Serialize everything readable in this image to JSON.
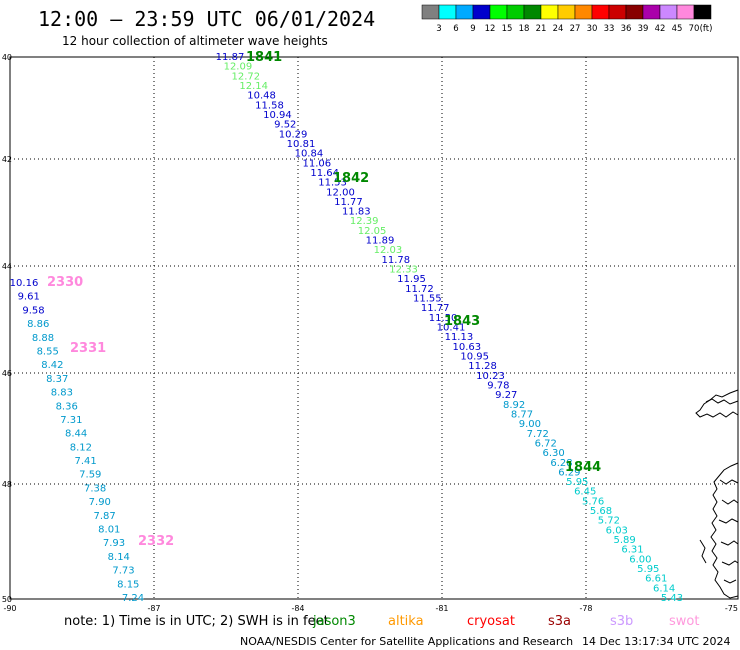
{
  "header": {
    "title": "12:00 — 23:59 UTC 06/01/2024",
    "subtitle": "12 hour collection of altimeter wave heights"
  },
  "colorbar": {
    "unit": "(ft)",
    "bins": [
      {
        "color": "#808080",
        "label": "3"
      },
      {
        "color": "#00ffff",
        "label": "6"
      },
      {
        "color": "#00aaff",
        "label": "9"
      },
      {
        "color": "#0000cc",
        "label": "12"
      },
      {
        "color": "#00ff00",
        "label": "15"
      },
      {
        "color": "#00cc00",
        "label": "18"
      },
      {
        "color": "#008800",
        "label": "21"
      },
      {
        "color": "#ffff00",
        "label": "24"
      },
      {
        "color": "#ffcc00",
        "label": "27"
      },
      {
        "color": "#ff8800",
        "label": "30"
      },
      {
        "color": "#ff0000",
        "label": "33"
      },
      {
        "color": "#cc0000",
        "label": "36"
      },
      {
        "color": "#880000",
        "label": "39"
      },
      {
        "color": "#aa00aa",
        "label": "42"
      },
      {
        "color": "#cc88ff",
        "label": "45"
      },
      {
        "color": "#ff88dd",
        "label": "70"
      },
      {
        "color": "#000000",
        "label": ""
      }
    ]
  },
  "axes": {
    "x_ticks": [
      "-90",
      "-87",
      "-84",
      "-81",
      "-78",
      "-75"
    ],
    "y_ticks": [
      "40",
      "42",
      "44",
      "46",
      "48",
      "50"
    ]
  },
  "tracks": [
    {
      "label": "1841",
      "color": "#008800"
    },
    {
      "label": "1842",
      "color": "#008800"
    },
    {
      "label": "1843",
      "color": "#008800"
    },
    {
      "label": "1844",
      "color": "#008800"
    },
    {
      "label": "2330",
      "color": "#ff88dd"
    },
    {
      "label": "2331",
      "color": "#ff88dd"
    },
    {
      "label": "2332",
      "color": "#ff88dd"
    }
  ],
  "observations": {
    "east_track": [
      {
        "v": "11.87",
        "c": "#0000cc"
      },
      {
        "v": "12.09",
        "c": "#66ee66"
      },
      {
        "v": "12.72",
        "c": "#66ee66"
      },
      {
        "v": "12.14",
        "c": "#66ee66"
      },
      {
        "v": "10.48",
        "c": "#0000cc"
      },
      {
        "v": "11.58",
        "c": "#0000cc"
      },
      {
        "v": "10.94",
        "c": "#0000cc"
      },
      {
        "v": "9.52",
        "c": "#0000cc"
      },
      {
        "v": "10.29",
        "c": "#0000cc"
      },
      {
        "v": "10.81",
        "c": "#0000cc"
      },
      {
        "v": "10.84",
        "c": "#0000cc"
      },
      {
        "v": "11.06",
        "c": "#0000cc"
      },
      {
        "v": "11.64",
        "c": "#0000cc"
      },
      {
        "v": "11.53",
        "c": "#0000cc"
      },
      {
        "v": "12.00",
        "c": "#0000cc"
      },
      {
        "v": "11.77",
        "c": "#0000cc"
      },
      {
        "v": "11.83",
        "c": "#0000cc"
      },
      {
        "v": "12.39",
        "c": "#66ee66"
      },
      {
        "v": "12.05",
        "c": "#66ee66"
      },
      {
        "v": "11.89",
        "c": "#0000cc"
      },
      {
        "v": "12.03",
        "c": "#66ee66"
      },
      {
        "v": "11.78",
        "c": "#0000cc"
      },
      {
        "v": "12.33",
        "c": "#66ee66"
      },
      {
        "v": "11.95",
        "c": "#0000cc"
      },
      {
        "v": "11.72",
        "c": "#0000cc"
      },
      {
        "v": "11.55",
        "c": "#0000cc"
      },
      {
        "v": "11.77",
        "c": "#0000cc"
      },
      {
        "v": "11.50",
        "c": "#0000cc"
      },
      {
        "v": "10.41",
        "c": "#0000cc"
      },
      {
        "v": "11.13",
        "c": "#0000cc"
      },
      {
        "v": "10.63",
        "c": "#0000cc"
      },
      {
        "v": "10.95",
        "c": "#0000cc"
      },
      {
        "v": "11.28",
        "c": "#0000cc"
      },
      {
        "v": "10.23",
        "c": "#0000cc"
      },
      {
        "v": "9.78",
        "c": "#0000cc"
      },
      {
        "v": "9.27",
        "c": "#0000cc"
      },
      {
        "v": "8.92",
        "c": "#0099cc"
      },
      {
        "v": "8.77",
        "c": "#0099cc"
      },
      {
        "v": "9.00",
        "c": "#0099cc"
      },
      {
        "v": "7.72",
        "c": "#0099cc"
      },
      {
        "v": "6.72",
        "c": "#0099cc"
      },
      {
        "v": "6.30",
        "c": "#0099cc"
      },
      {
        "v": "6.28",
        "c": "#0099cc"
      },
      {
        "v": "6.29",
        "c": "#0099cc"
      },
      {
        "v": "5.95",
        "c": "#00cccc"
      },
      {
        "v": "6.45",
        "c": "#00cccc"
      },
      {
        "v": "5.76",
        "c": "#00cccc"
      },
      {
        "v": "5.68",
        "c": "#00cccc"
      },
      {
        "v": "5.72",
        "c": "#00cccc"
      },
      {
        "v": "6.03",
        "c": "#00cccc"
      },
      {
        "v": "5.89",
        "c": "#00cccc"
      },
      {
        "v": "6.31",
        "c": "#00cccc"
      },
      {
        "v": "6.00",
        "c": "#00cccc"
      },
      {
        "v": "5.95",
        "c": "#00cccc"
      },
      {
        "v": "6.61",
        "c": "#00cccc"
      },
      {
        "v": "6.14",
        "c": "#00cccc"
      },
      {
        "v": "5.43",
        "c": "#00cccc"
      }
    ],
    "west_track": [
      {
        "v": "10.16",
        "c": "#0000cc"
      },
      {
        "v": "9.61",
        "c": "#0000cc"
      },
      {
        "v": "9.58",
        "c": "#0000cc"
      },
      {
        "v": "8.86",
        "c": "#0099cc"
      },
      {
        "v": "8.88",
        "c": "#0099cc"
      },
      {
        "v": "8.55",
        "c": "#0099cc"
      },
      {
        "v": "8.42",
        "c": "#0099cc"
      },
      {
        "v": "8.37",
        "c": "#0099cc"
      },
      {
        "v": "8.83",
        "c": "#0099cc"
      },
      {
        "v": "8.36",
        "c": "#0099cc"
      },
      {
        "v": "7.31",
        "c": "#0099cc"
      },
      {
        "v": "8.44",
        "c": "#0099cc"
      },
      {
        "v": "8.12",
        "c": "#0099cc"
      },
      {
        "v": "7.41",
        "c": "#0099cc"
      },
      {
        "v": "7.59",
        "c": "#0099cc"
      },
      {
        "v": "7.38",
        "c": "#0099cc"
      },
      {
        "v": "7.90",
        "c": "#0099cc"
      },
      {
        "v": "7.87",
        "c": "#0099cc"
      },
      {
        "v": "8.01",
        "c": "#0099cc"
      },
      {
        "v": "7.93",
        "c": "#0099cc"
      },
      {
        "v": "8.14",
        "c": "#0099cc"
      },
      {
        "v": "7.73",
        "c": "#0099cc"
      },
      {
        "v": "8.15",
        "c": "#0099cc"
      },
      {
        "v": "7.24",
        "c": "#0099cc"
      }
    ]
  },
  "footer": {
    "note": "note:  1) Time is in UTC; 2) SWH is in feet",
    "missions": [
      {
        "name": "jason3",
        "color": "#008800"
      },
      {
        "name": "altika",
        "color": "#ff9900"
      },
      {
        "name": "cryosat",
        "color": "#ff0000"
      },
      {
        "name": "s3a",
        "color": "#990000"
      },
      {
        "name": "s3b",
        "color": "#cc99ff"
      },
      {
        "name": "swot",
        "color": "#ff99dd"
      }
    ],
    "credit": "NOAA/NESDIS Center for Satellite Applications and Research",
    "timestamp": "14 Dec 13:17:34 UTC 2024"
  }
}
